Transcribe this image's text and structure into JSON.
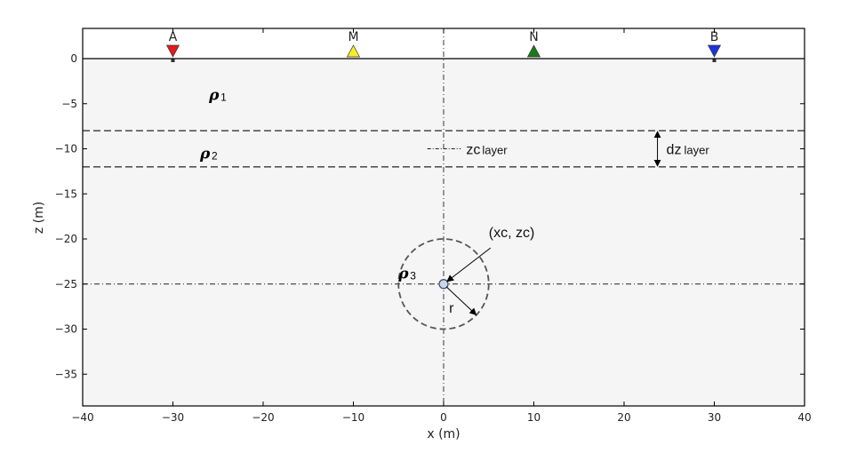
{
  "chart_data": {
    "type": "diagram",
    "xlabel": "x (m)",
    "ylabel": "z (m)",
    "xlim": [
      -40,
      40
    ],
    "ylim": [
      -38,
      3
    ],
    "x_ticks": [
      -40,
      -30,
      -20,
      -10,
      0,
      10,
      20,
      30,
      40
    ],
    "y_ticks": [
      0,
      -5,
      -10,
      -15,
      -20,
      -25,
      -30,
      -35
    ],
    "x_tick_labels": [
      "−40",
      "−30",
      "−20",
      "−10",
      "0",
      "10",
      "20",
      "30",
      "40"
    ],
    "y_tick_labels": [
      "0",
      "−5",
      "−10",
      "−15",
      "−20",
      "−25",
      "−30",
      "−35"
    ],
    "electrodes": [
      {
        "label": "A",
        "x": -30,
        "color": "#e31a1c",
        "marker": "triangle-down"
      },
      {
        "label": "M",
        "x": -10,
        "color": "#f5ee2a",
        "marker": "triangle-up"
      },
      {
        "label": "N",
        "x": 10,
        "color": "#1a7a1a",
        "marker": "triangle-up"
      },
      {
        "label": "B",
        "x": 30,
        "color": "#1f33e0",
        "marker": "triangle-down"
      }
    ],
    "layer": {
      "top": -8,
      "bottom": -12
    },
    "sphere": {
      "xc": 0,
      "zc": -25,
      "r": 5
    },
    "regions": [
      {
        "symbol": "ρ",
        "sub": "1",
        "x": -26,
        "z": -4
      },
      {
        "symbol": "ρ",
        "sub": "2",
        "x": -27,
        "z": -10.5
      },
      {
        "symbol": "ρ",
        "sub": "3",
        "x": -5,
        "z": -23.8
      }
    ],
    "annotations": {
      "zc_layer": {
        "main": "zc",
        "sub": "layer"
      },
      "dz_layer": {
        "main": "dz",
        "sub": "layer"
      },
      "center": "(xc, zc)",
      "radius": "r"
    }
  }
}
